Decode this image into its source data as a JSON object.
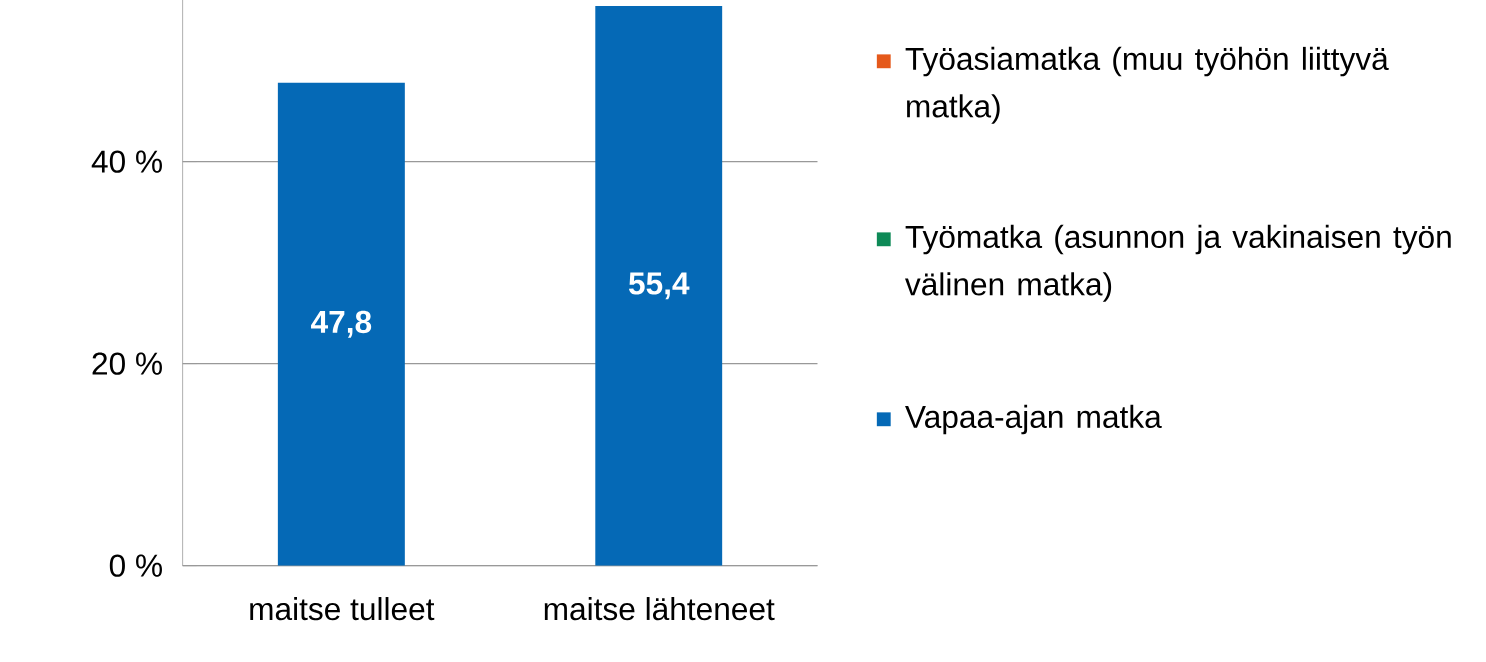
{
  "chart_data": {
    "type": "bar",
    "stacked": true,
    "categories": [
      "maitse tulleet",
      "maitse lähteneet"
    ],
    "series": [
      {
        "name": "Vapaa-ajan matka",
        "color": "#0569b6",
        "values": [
          47.8,
          55.4
        ],
        "value_labels": [
          "47,8",
          "55,4"
        ]
      },
      {
        "name": "Työmatka (asunnon ja vakinaisen työn välinen matka)",
        "color": "#0e8a57",
        "values": [
          null,
          null
        ]
      },
      {
        "name": "Työasiamatka (muu työhön liittyvä matka)",
        "color": "#e5591b",
        "values": [
          null,
          null
        ]
      }
    ],
    "ylim": [
      0,
      56
    ],
    "yticks": [
      {
        "value": 0,
        "label": "0 %"
      },
      {
        "value": 20,
        "label": "20 %"
      },
      {
        "value": 40,
        "label": "40 %"
      }
    ],
    "grid": "y",
    "legend": "right"
  }
}
